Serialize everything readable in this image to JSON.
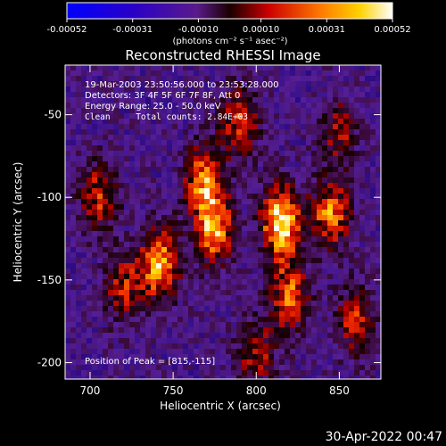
{
  "chart_data": {
    "type": "heatmap",
    "title": "Reconstructed RHESSI Image",
    "xlabel": "Heliocentric X (arcsec)",
    "ylabel": "Heliocentric Y (arcsec)",
    "xlim": [
      685,
      875
    ],
    "ylim": [
      -210,
      -20
    ],
    "x_ticks": [
      700,
      750,
      800,
      850
    ],
    "y_ticks": [
      -50,
      -100,
      -150,
      -200
    ],
    "colorbar": {
      "min": -0.00052,
      "max": 0.00052,
      "tick_labels": [
        "-0.00052",
        "-0.00031",
        "-0.00010",
        "0.00010",
        "0.00031",
        "0.00052"
      ],
      "tick_values": [
        -0.00052,
        -0.00031,
        -0.0001,
        0.0001,
        0.00031,
        0.00052
      ],
      "unit_label": "(photons cm⁻² s⁻¹ asec⁻²)"
    },
    "annotations": [
      "19-Mar-2003 23:50:56.000 to 23:53:28.000",
      "Detectors: 3F 4F 5F 6F 7F 8F, Att 0",
      "Energy Range: 25.0 - 50.0 keV",
      "Clean     Total counts: 2.84E+03"
    ],
    "peak_label": "Position of Peak = [815,-115]",
    "sources": [
      {
        "x": 815,
        "y": -115,
        "peak": 1.0
      },
      {
        "x": 742,
        "y": -140,
        "peak": 0.85
      },
      {
        "x": 775,
        "y": -120,
        "peak": 0.75
      },
      {
        "x": 768,
        "y": -90,
        "peak": 0.7
      },
      {
        "x": 845,
        "y": -110,
        "peak": 0.72
      },
      {
        "x": 820,
        "y": -160,
        "peak": 0.65
      },
      {
        "x": 790,
        "y": -55,
        "peak": 0.6
      },
      {
        "x": 705,
        "y": -100,
        "peak": 0.55
      },
      {
        "x": 720,
        "y": -155,
        "peak": 0.5
      },
      {
        "x": 860,
        "y": -175,
        "peak": 0.55
      },
      {
        "x": 800,
        "y": -195,
        "peak": 0.5
      },
      {
        "x": 850,
        "y": -60,
        "peak": 0.45
      }
    ]
  },
  "timestamp": "30-Apr-2022 00:47"
}
